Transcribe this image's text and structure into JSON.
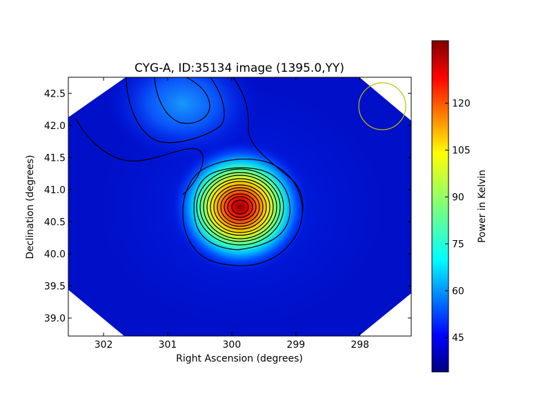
{
  "chart_data": {
    "type": "heatmap",
    "title": "CYG-A, ID:35134 image (1395.0,YY)",
    "xlabel": "Right Ascension (degrees)",
    "ylabel": "Declination (degrees)",
    "xlim": [
      302.55,
      297.2
    ],
    "ylim": [
      38.72,
      42.75
    ],
    "x_ticks": [
      302,
      301,
      300,
      299,
      298
    ],
    "x_tick_labels": [
      "302",
      "301",
      "300",
      "299",
      "298"
    ],
    "y_ticks": [
      39.0,
      39.5,
      40.0,
      40.5,
      41.0,
      41.5,
      42.0,
      42.5
    ],
    "y_tick_labels": [
      "39.0",
      "39.5",
      "40.0",
      "40.5",
      "41.0",
      "41.5",
      "42.0",
      "42.5"
    ],
    "colormap": "jet",
    "colorbar": {
      "label": "Power in Kelvin",
      "range": [
        34,
        140
      ],
      "ticks": [
        45,
        60,
        75,
        90,
        105,
        120
      ],
      "tick_labels": [
        "45",
        "60",
        "75",
        "90",
        "105",
        "120"
      ]
    },
    "background_level": 40,
    "sources": [
      {
        "name": "CYG-A",
        "ra": 299.87,
        "dec": 40.73,
        "peak": 140
      },
      {
        "ra": 300.6,
        "dec": 42.4,
        "peak": 58
      }
    ],
    "beam_circle": {
      "ra": 297.65,
      "dec": 42.3,
      "radius_deg": 0.37,
      "color": "#bfbf00"
    },
    "contour_color": "#000000",
    "grid": false
  }
}
